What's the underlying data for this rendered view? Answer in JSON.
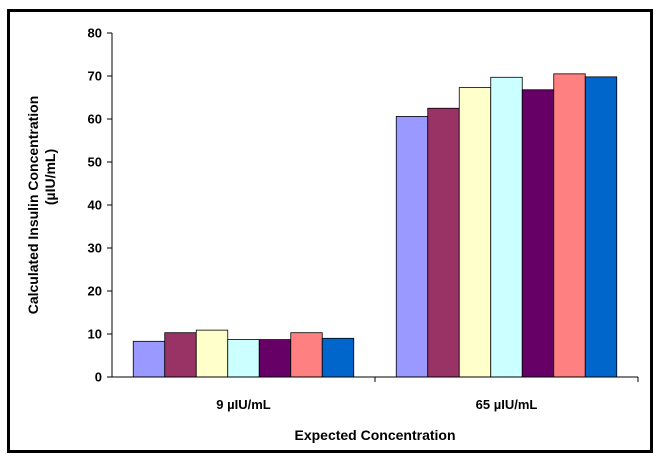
{
  "chart_data": {
    "type": "bar",
    "title": "",
    "xlabel": "Expected Concentration",
    "ylabel_line1": "Calculated Insulin Concentration",
    "ylabel_line2": "(µIU/mL)",
    "ylim": [
      0,
      80
    ],
    "yticks": [
      0,
      10,
      20,
      30,
      40,
      50,
      60,
      70,
      80
    ],
    "grid": false,
    "legend": "none",
    "categories": [
      "9 µIU/mL",
      "65 µIU/mL"
    ],
    "series": [
      {
        "color": "#9999ff",
        "values": [
          8.3,
          60.6
        ]
      },
      {
        "color": "#993366",
        "values": [
          10.3,
          62.5
        ]
      },
      {
        "color": "#ffffcc",
        "values": [
          10.9,
          67.3
        ]
      },
      {
        "color": "#ccffff",
        "values": [
          8.7,
          69.7
        ]
      },
      {
        "color": "#660066",
        "values": [
          8.7,
          66.8
        ]
      },
      {
        "color": "#ff8080",
        "values": [
          10.3,
          70.5
        ]
      },
      {
        "color": "#0066cc",
        "values": [
          9.0,
          69.8
        ]
      }
    ]
  }
}
